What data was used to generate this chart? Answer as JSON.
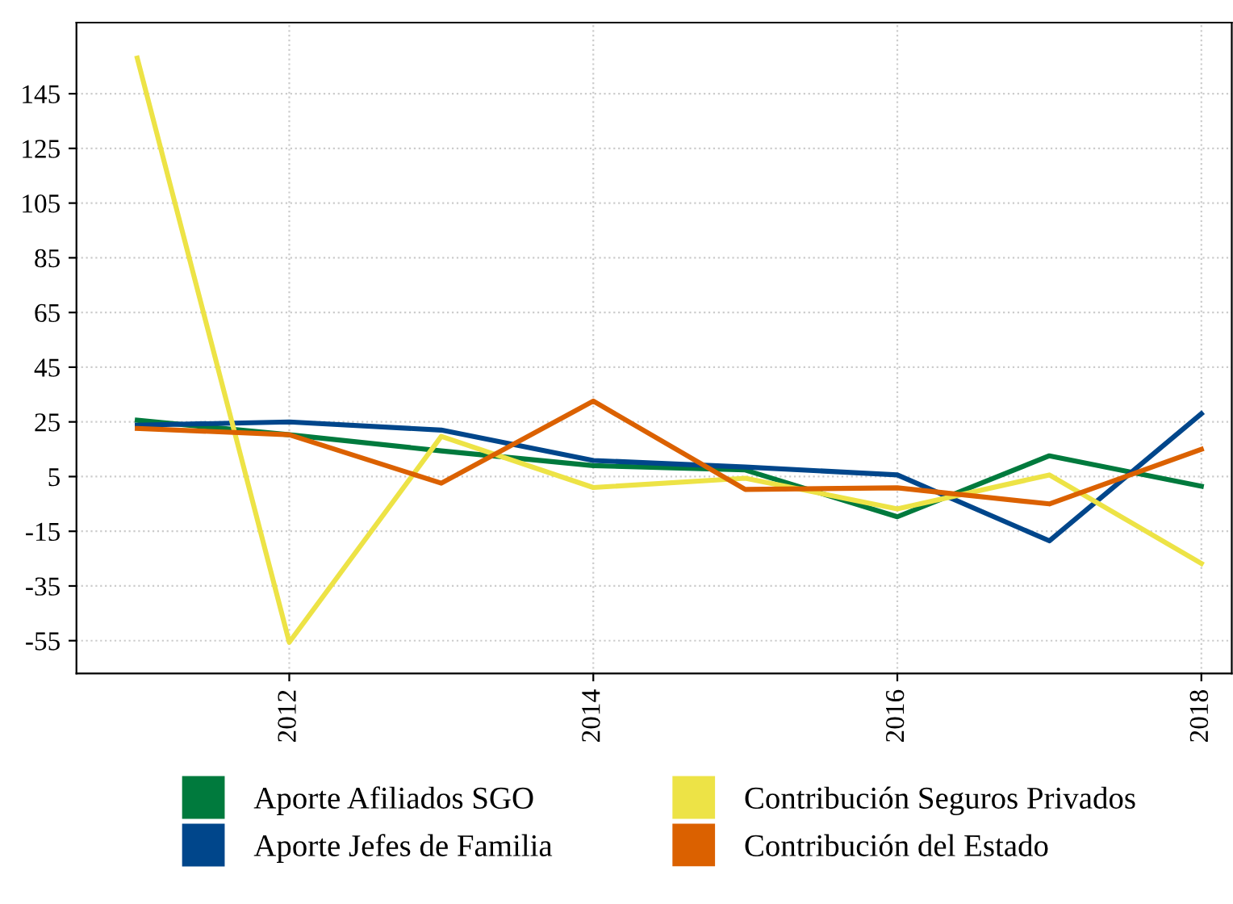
{
  "chart_data": {
    "type": "line",
    "x": [
      2011,
      2012,
      2013,
      2014,
      2015,
      2016,
      2017,
      2018
    ],
    "series": [
      {
        "name": "Aporte Afiliados SGO",
        "color": "#007a3d",
        "values": [
          25.6,
          20.3,
          14.4,
          9,
          7.4,
          -9.7,
          12.6,
          1.5
        ]
      },
      {
        "name": "Aporte Jefes de Familia",
        "color": "#00468b",
        "values": [
          23.8,
          25,
          22,
          10.9,
          8.5,
          5.6,
          -18.5,
          28
        ]
      },
      {
        "name": "Contribución Seguros Privados",
        "color": "#ede346",
        "values": [
          158,
          -55.6,
          19.7,
          1,
          4.4,
          -6.8,
          5.6,
          -26.8
        ]
      },
      {
        "name": "Contribución del Estado",
        "color": "#db6100",
        "values": [
          22.6,
          20.3,
          2.6,
          32.6,
          0.3,
          0.9,
          -5,
          15
        ]
      }
    ],
    "xlim": [
      2010.6,
      2018.2
    ],
    "xticks": [
      2012,
      2014,
      2016,
      2018
    ],
    "ylim": [
      -67,
      171
    ],
    "yticks": [
      -55,
      -35,
      -15,
      5,
      25,
      45,
      65,
      85,
      105,
      125,
      145
    ],
    "grid": true,
    "legend": "bottom",
    "line_style": "solid",
    "marker": "none"
  }
}
